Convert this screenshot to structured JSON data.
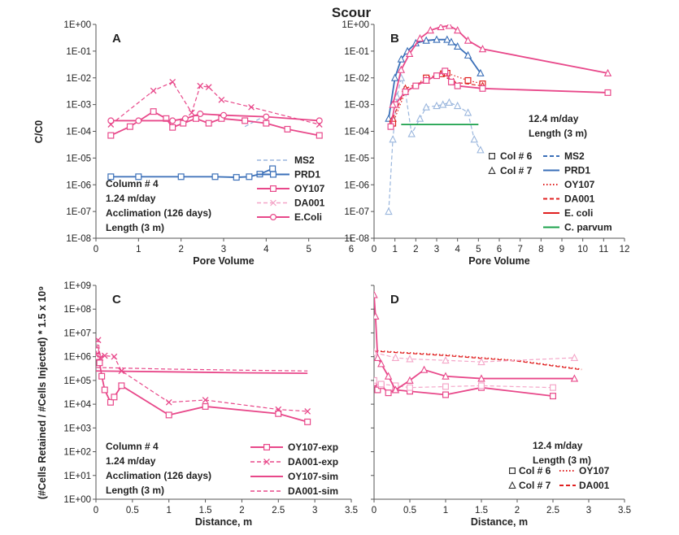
{
  "title": "Scour",
  "ylabel_top": "C/C0",
  "ylabel_bottom": "(#Cells Retained / #Cells Injected) * 1.5 x 10⁹",
  "colors": {
    "pink": "#e8488a",
    "lightpink": "#f4a6c8",
    "blue": "#3a6fb8",
    "lightblue": "#9ab6dd",
    "red": "#e02020",
    "green": "#1aa04a"
  },
  "chart_data": [
    {
      "type": "line",
      "panel": "A",
      "xlabel": "Pore Volume",
      "ylabel": "C/C0",
      "xlim": [
        0,
        6
      ],
      "ylim_log10": [
        -8,
        0
      ],
      "xticks": [
        "0",
        "1",
        "2",
        "3",
        "4",
        "5",
        "6"
      ],
      "yticks": [
        "1E-08",
        "1E-07",
        "1E-06",
        "1E-05",
        "1E-04",
        "1E-03",
        "1E-02",
        "1E-01",
        "1E+00"
      ],
      "annotation": [
        "Column # 4",
        "1.24 m/day",
        "Acclimation (126 days)",
        "Length (3 m)"
      ],
      "legend": [
        "MS2",
        "PRD1",
        "OY107",
        "DA001",
        "E.Coli"
      ],
      "series": [
        {
          "name": "MS2",
          "style": "dash",
          "color": "lightblue",
          "marker": "none",
          "points": [
            [
              3.5,
              0.00015
            ],
            [
              4.0,
              0.0004
            ]
          ]
        },
        {
          "name": "PRD1",
          "style": "solid",
          "color": "blue",
          "marker": "square",
          "points": [
            [
              0.35,
              2e-06
            ],
            [
              1.0,
              2e-06
            ],
            [
              2.0,
              2e-06
            ],
            [
              2.8,
              2e-06
            ],
            [
              3.3,
              1.9e-06
            ],
            [
              3.6,
              2e-06
            ],
            [
              3.85,
              2.5e-06
            ],
            [
              4.15,
              4e-06
            ]
          ]
        },
        {
          "name": "OY107",
          "style": "solid",
          "color": "pink",
          "marker": "square",
          "points": [
            [
              0.35,
              7e-05
            ],
            [
              0.8,
              0.00015
            ],
            [
              1.35,
              0.00055
            ],
            [
              1.65,
              0.0003
            ],
            [
              1.8,
              0.00014
            ],
            [
              2.05,
              0.0002
            ],
            [
              2.35,
              0.0003
            ],
            [
              2.65,
              0.0002
            ],
            [
              2.95,
              0.0003
            ],
            [
              3.5,
              0.00025
            ],
            [
              4.0,
              0.0002
            ],
            [
              4.5,
              0.00012
            ],
            [
              5.25,
              7e-05
            ]
          ]
        },
        {
          "name": "DA001",
          "style": "dash",
          "color": "pink",
          "marker": "x",
          "points": [
            [
              0.35,
              0.00018
            ],
            [
              1.35,
              0.0033
            ],
            [
              1.8,
              0.007
            ],
            [
              2.25,
              0.0005
            ],
            [
              2.45,
              0.005
            ],
            [
              2.65,
              0.0045
            ],
            [
              2.95,
              0.0015
            ],
            [
              3.65,
              0.0008
            ],
            [
              5.25,
              0.00018
            ]
          ]
        },
        {
          "name": "E.Coli",
          "style": "solid",
          "color": "pink",
          "marker": "circle",
          "points": [
            [
              0.35,
              0.00025
            ],
            [
              1.0,
              0.00025
            ],
            [
              1.8,
              0.00025
            ],
            [
              2.1,
              0.0003
            ],
            [
              2.45,
              0.00045
            ],
            [
              3.0,
              0.0004
            ],
            [
              4.0,
              0.00035
            ],
            [
              5.25,
              0.00025
            ]
          ]
        }
      ]
    },
    {
      "type": "line",
      "panel": "B",
      "xlabel": "Pore Volume",
      "ylabel": "C/C0",
      "xlim": [
        0,
        12
      ],
      "ylim_log10": [
        -8,
        0
      ],
      "xticks": [
        "0",
        "1",
        "2",
        "3",
        "4",
        "5",
        "6",
        "7",
        "8",
        "9",
        "10",
        "11",
        "12"
      ],
      "yticks": [
        "1E-08",
        "1E-07",
        "1E-06",
        "1E-05",
        "1E-04",
        "1E-03",
        "1E-02",
        "1E-01",
        "1E+00"
      ],
      "annotation": [
        "12.4 m/day",
        "Length (3 m)"
      ],
      "legend_markers": [
        "Col # 6",
        "Col # 7"
      ],
      "legend": [
        "MS2",
        "PRD1",
        "OY107",
        "DA001",
        "E. coli",
        "C. parvum"
      ],
      "series": [
        {
          "name": "MS2",
          "style": "dash",
          "color": "lightblue",
          "marker": "triangle",
          "points": [
            [
              0.7,
              1e-07
            ],
            [
              0.9,
              5e-05
            ],
            [
              1.1,
              0.002
            ],
            [
              1.3,
              0.01
            ],
            [
              1.5,
              0.003
            ],
            [
              1.8,
              8e-05
            ],
            [
              2.2,
              0.0003
            ],
            [
              2.5,
              0.0008
            ],
            [
              3.0,
              0.0009
            ],
            [
              3.3,
              0.001
            ],
            [
              3.6,
              0.0012
            ],
            [
              4.0,
              0.0009
            ],
            [
              4.5,
              0.0005
            ],
            [
              4.8,
              5e-05
            ],
            [
              5.1,
              2e-05
            ]
          ]
        },
        {
          "name": "PRD1",
          "style": "solid",
          "color": "blue",
          "marker": "triangle",
          "points": [
            [
              0.7,
              0.0003
            ],
            [
              1.0,
              0.01
            ],
            [
              1.3,
              0.05
            ],
            [
              1.6,
              0.1
            ],
            [
              2.0,
              0.2
            ],
            [
              2.5,
              0.25
            ],
            [
              3.0,
              0.27
            ],
            [
              3.5,
              0.27
            ],
            [
              3.7,
              0.22
            ],
            [
              4.0,
              0.15
            ],
            [
              4.5,
              0.07
            ],
            [
              5.1,
              0.015
            ]
          ]
        },
        {
          "name": "OY107",
          "style": "dot",
          "color": "red",
          "marker": "square",
          "points": [
            [
              0.9,
              0.0002
            ],
            [
              1.5,
              0.003
            ],
            [
              2.5,
              0.01
            ],
            [
              3.5,
              0.015
            ],
            [
              4.5,
              0.008
            ],
            [
              5.2,
              0.006
            ]
          ]
        },
        {
          "name": "DA001",
          "style": "dash",
          "color": "red",
          "marker": "triangle",
          "points": [
            [
              0.9,
              0.0003
            ],
            [
              1.5,
              0.004
            ],
            [
              2.5,
              0.008
            ],
            [
              3.2,
              0.014
            ],
            [
              3.8,
              0.007
            ],
            [
              5.2,
              0.005
            ]
          ]
        },
        {
          "name": "E. coli",
          "style": "solid",
          "color": "pink",
          "marker": "square",
          "points": [
            [
              0.8,
              0.00015
            ],
            [
              1.0,
              0.001
            ],
            [
              1.5,
              0.003
            ],
            [
              2.0,
              0.005
            ],
            [
              2.5,
              0.008
            ],
            [
              3.0,
              0.012
            ],
            [
              3.4,
              0.018
            ],
            [
              3.7,
              0.007
            ],
            [
              4.0,
              0.005
            ],
            [
              5.2,
              0.004
            ],
            [
              11.2,
              0.0028
            ]
          ]
        },
        {
          "name": "E. coli",
          "style": "solid",
          "color": "pink",
          "marker": "triangle",
          "points": [
            [
              0.9,
              0.001
            ],
            [
              1.3,
              0.02
            ],
            [
              1.7,
              0.08
            ],
            [
              2.2,
              0.3
            ],
            [
              2.7,
              0.6
            ],
            [
              3.2,
              0.8
            ],
            [
              3.6,
              0.9
            ],
            [
              4.0,
              0.6
            ],
            [
              4.5,
              0.25
            ],
            [
              5.2,
              0.12
            ],
            [
              11.2,
              0.015
            ]
          ]
        },
        {
          "name": "C. parvum",
          "style": "solid",
          "color": "green",
          "marker": "none",
          "points": [
            [
              1.3,
              0.00018
            ],
            [
              5.0,
              0.00018
            ]
          ]
        }
      ]
    },
    {
      "type": "line",
      "panel": "C",
      "xlabel": "Distance, m",
      "ylabel": "(#Cells Retained / #Cells Injected) * 1.5 x 10⁹",
      "xlim": [
        0,
        3.5
      ],
      "ylim_log10": [
        0,
        9
      ],
      "xticks": [
        "0",
        "0.5",
        "1",
        "1.5",
        "2",
        "2.5",
        "3",
        "3.5"
      ],
      "yticks": [
        "1E+00",
        "1E+01",
        "1E+02",
        "1E+03",
        "1E+04",
        "1E+05",
        "1E+06",
        "1E+07",
        "1E+08",
        "1E+09"
      ],
      "annotation": [
        "Column # 4",
        "1.24 m/day",
        "Acclimation (126 days)",
        "Length (3 m)"
      ],
      "legend": [
        "OY107-exp",
        "DA001-exp",
        "OY107-sim",
        "DA001-sim"
      ],
      "series": [
        {
          "name": "OY107-exp",
          "style": "solid",
          "color": "pink",
          "marker": "square",
          "points": [
            [
              0.0,
              1800000
            ],
            [
              0.02,
              1000000
            ],
            [
              0.05,
              550000
            ],
            [
              0.08,
              150000
            ],
            [
              0.12,
              40000
            ],
            [
              0.2,
              12000
            ],
            [
              0.25,
              20000
            ],
            [
              0.35,
              60000
            ],
            [
              1.0,
              3500
            ],
            [
              1.5,
              8000
            ],
            [
              2.5,
              4000
            ],
            [
              2.9,
              1800
            ]
          ]
        },
        {
          "name": "DA001-exp",
          "style": "dash",
          "color": "pink",
          "marker": "x",
          "points": [
            [
              0.0,
              1200000
            ],
            [
              0.03,
              5000000
            ],
            [
              0.06,
              900000
            ],
            [
              0.12,
              1100000
            ],
            [
              0.25,
              1000000
            ],
            [
              0.35,
              250000
            ],
            [
              1.0,
              12000
            ],
            [
              1.5,
              15000
            ],
            [
              2.5,
              6000
            ],
            [
              2.9,
              5000
            ]
          ]
        },
        {
          "name": "OY107-sim",
          "style": "solid",
          "color": "pink",
          "marker": "none",
          "points": [
            [
              0.0,
              250000
            ],
            [
              1.0,
              230000
            ],
            [
              2.0,
              210000
            ],
            [
              2.9,
              200000
            ]
          ]
        },
        {
          "name": "DA001-sim",
          "style": "dash",
          "color": "pink",
          "marker": "none",
          "points": [
            [
              0.0,
              350000
            ],
            [
              1.0,
              300000
            ],
            [
              2.0,
              270000
            ],
            [
              2.9,
              250000
            ]
          ]
        }
      ]
    },
    {
      "type": "line",
      "panel": "D",
      "xlabel": "Distance, m",
      "xlim": [
        0,
        3.5
      ],
      "ylim_log10": [
        0,
        9
      ],
      "xticks": [
        "0",
        "0.5",
        "1",
        "1.5",
        "2",
        "2.5",
        "3",
        "3.5"
      ],
      "annotation": [
        "12.4 m/day",
        "Length (3 m)"
      ],
      "legend_markers": [
        "Col # 6",
        "Col # 7"
      ],
      "legend": [
        "OY107",
        "DA001"
      ],
      "series": [
        {
          "name": "OY107",
          "style": "dot",
          "color": "red",
          "marker": "none",
          "points": [
            [
              0.0,
              1800000
            ],
            [
              1.0,
              1200000
            ],
            [
              2.0,
              700000
            ],
            [
              2.9,
              300000
            ]
          ]
        },
        {
          "name": "DA001",
          "style": "dash",
          "color": "red",
          "marker": "none",
          "points": [
            [
              0.0,
              1700000
            ],
            [
              1.0,
              1100000
            ],
            [
              2.0,
              650000
            ],
            [
              2.9,
              280000
            ]
          ]
        },
        {
          "name": "Col # 6",
          "style": "solid",
          "color": "pink",
          "marker": "square",
          "points": [
            [
              0.0,
              80000
            ],
            [
              0.05,
              40000
            ],
            [
              0.1,
              60000
            ],
            [
              0.2,
              30000
            ],
            [
              0.3,
              40000
            ],
            [
              0.5,
              35000
            ],
            [
              1.0,
              25000
            ],
            [
              1.5,
              50000
            ],
            [
              2.5,
              22000
            ]
          ]
        },
        {
          "name": "Col # 6",
          "style": "dash",
          "color": "lightpink",
          "marker": "square",
          "points": [
            [
              0.0,
              100000
            ],
            [
              0.1,
              70000
            ],
            [
              0.3,
              60000
            ],
            [
              0.5,
              50000
            ],
            [
              1.0,
              55000
            ],
            [
              1.5,
              60000
            ],
            [
              2.5,
              50000
            ]
          ]
        },
        {
          "name": "Col # 7",
          "style": "solid",
          "color": "pink",
          "marker": "triangle",
          "points": [
            [
              0.0,
              400000000
            ],
            [
              0.02,
              50000000
            ],
            [
              0.05,
              900000
            ],
            [
              0.1,
              500000
            ],
            [
              0.2,
              150000
            ],
            [
              0.3,
              40000
            ],
            [
              0.5,
              100000
            ],
            [
              0.7,
              280000
            ],
            [
              1.0,
              150000
            ],
            [
              1.5,
              120000
            ],
            [
              2.8,
              120000
            ]
          ]
        },
        {
          "name": "Col # 7",
          "style": "dash",
          "color": "lightpink",
          "marker": "triangle",
          "points": [
            [
              0.0,
              1500000
            ],
            [
              0.3,
              900000
            ],
            [
              0.5,
              800000
            ],
            [
              1.0,
              700000
            ],
            [
              1.5,
              600000
            ],
            [
              2.8,
              900000
            ]
          ]
        }
      ]
    }
  ]
}
